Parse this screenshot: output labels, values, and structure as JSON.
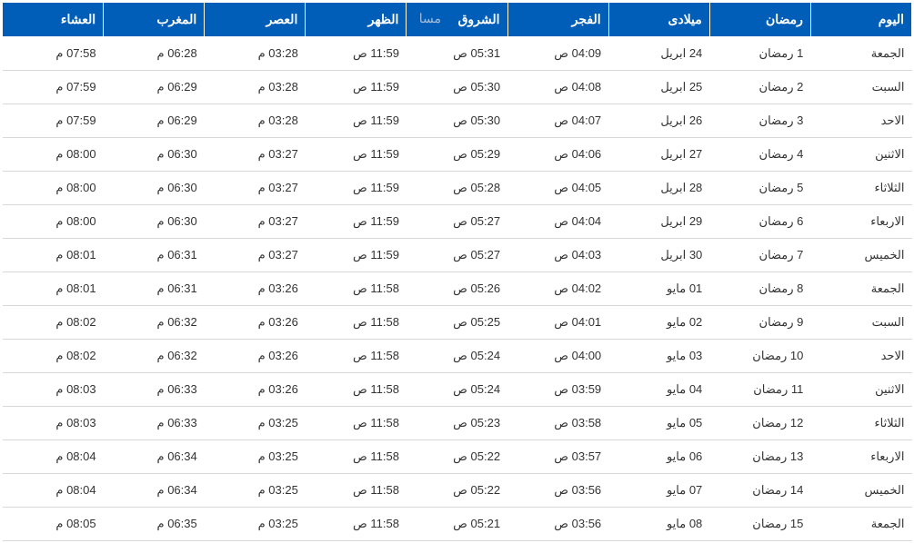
{
  "table": {
    "columns": [
      "اليوم",
      "رمضان",
      "ميلادى",
      "الفجر",
      "الشروق",
      "الظهر",
      "العصر",
      "المغرب",
      "العشاء"
    ],
    "rows": [
      [
        "الجمعة",
        "1 رمضان",
        "24 ابريل",
        "04:09 ص",
        "05:31 ص",
        "11:59 ص",
        "03:28 م",
        "06:28 م",
        "07:58 م"
      ],
      [
        "السبت",
        "2 رمضان",
        "25 ابريل",
        "04:08 ص",
        "05:30 ص",
        "11:59 ص",
        "03:28 م",
        "06:29 م",
        "07:59 م"
      ],
      [
        "الاحد",
        "3 رمضان",
        "26 ابريل",
        "04:07 ص",
        "05:30 ص",
        "11:59 ص",
        "03:28 م",
        "06:29 م",
        "07:59 م"
      ],
      [
        "الاثنين",
        "4 رمضان",
        "27 ابريل",
        "04:06 ص",
        "05:29 ص",
        "11:59 ص",
        "03:27 م",
        "06:30 م",
        "08:00 م"
      ],
      [
        "الثلاثاء",
        "5 رمضان",
        "28 ابريل",
        "04:05 ص",
        "05:28 ص",
        "11:59 ص",
        "03:27 م",
        "06:30 م",
        "08:00 م"
      ],
      [
        "الاربعاء",
        "6 رمضان",
        "29 ابريل",
        "04:04 ص",
        "05:27 ص",
        "11:59 ص",
        "03:27 م",
        "06:30 م",
        "08:00 م"
      ],
      [
        "الخميس",
        "7 رمضان",
        "30 ابريل",
        "04:03 ص",
        "05:27 ص",
        "11:59 ص",
        "03:27 م",
        "06:31 م",
        "08:01 م"
      ],
      [
        "الجمعة",
        "8 رمضان",
        "01 مايو",
        "04:02 ص",
        "05:26 ص",
        "11:58 ص",
        "03:26 م",
        "06:31 م",
        "08:01 م"
      ],
      [
        "السبت",
        "9 رمضان",
        "02 مايو",
        "04:01 ص",
        "05:25 ص",
        "11:58 ص",
        "03:26 م",
        "06:32 م",
        "08:02 م"
      ],
      [
        "الاحد",
        "10 رمضان",
        "03 مايو",
        "04:00 ص",
        "05:24 ص",
        "11:58 ص",
        "03:26 م",
        "06:32 م",
        "08:02 م"
      ],
      [
        "الاثنين",
        "11 رمضان",
        "04 مايو",
        "03:59 ص",
        "05:24 ص",
        "11:58 ص",
        "03:26 م",
        "06:33 م",
        "08:03 م"
      ],
      [
        "الثلاثاء",
        "12 رمضان",
        "05 مايو",
        "03:58 ص",
        "05:23 ص",
        "11:58 ص",
        "03:25 م",
        "06:33 م",
        "08:03 م"
      ],
      [
        "الاربعاء",
        "13 رمضان",
        "06 مايو",
        "03:57 ص",
        "05:22 ص",
        "11:58 ص",
        "03:25 م",
        "06:34 م",
        "08:04 م"
      ],
      [
        "الخميس",
        "14 رمضان",
        "07 مايو",
        "03:56 ص",
        "05:22 ص",
        "11:58 ص",
        "03:25 م",
        "06:34 م",
        "08:04 م"
      ],
      [
        "الجمعة",
        "15 رمضان",
        "08 مايو",
        "03:56 ص",
        "05:21 ص",
        "11:58 ص",
        "03:25 م",
        "06:35 م",
        "08:05 م"
      ]
    ],
    "header_bg": "#005db8",
    "header_fg": "#ffffff",
    "row_bg": "#ffffff",
    "row_fg": "#333333",
    "border_color": "#d8d8d8",
    "header_fontsize": 14,
    "cell_fontsize": 13
  },
  "watermark": "مسا"
}
